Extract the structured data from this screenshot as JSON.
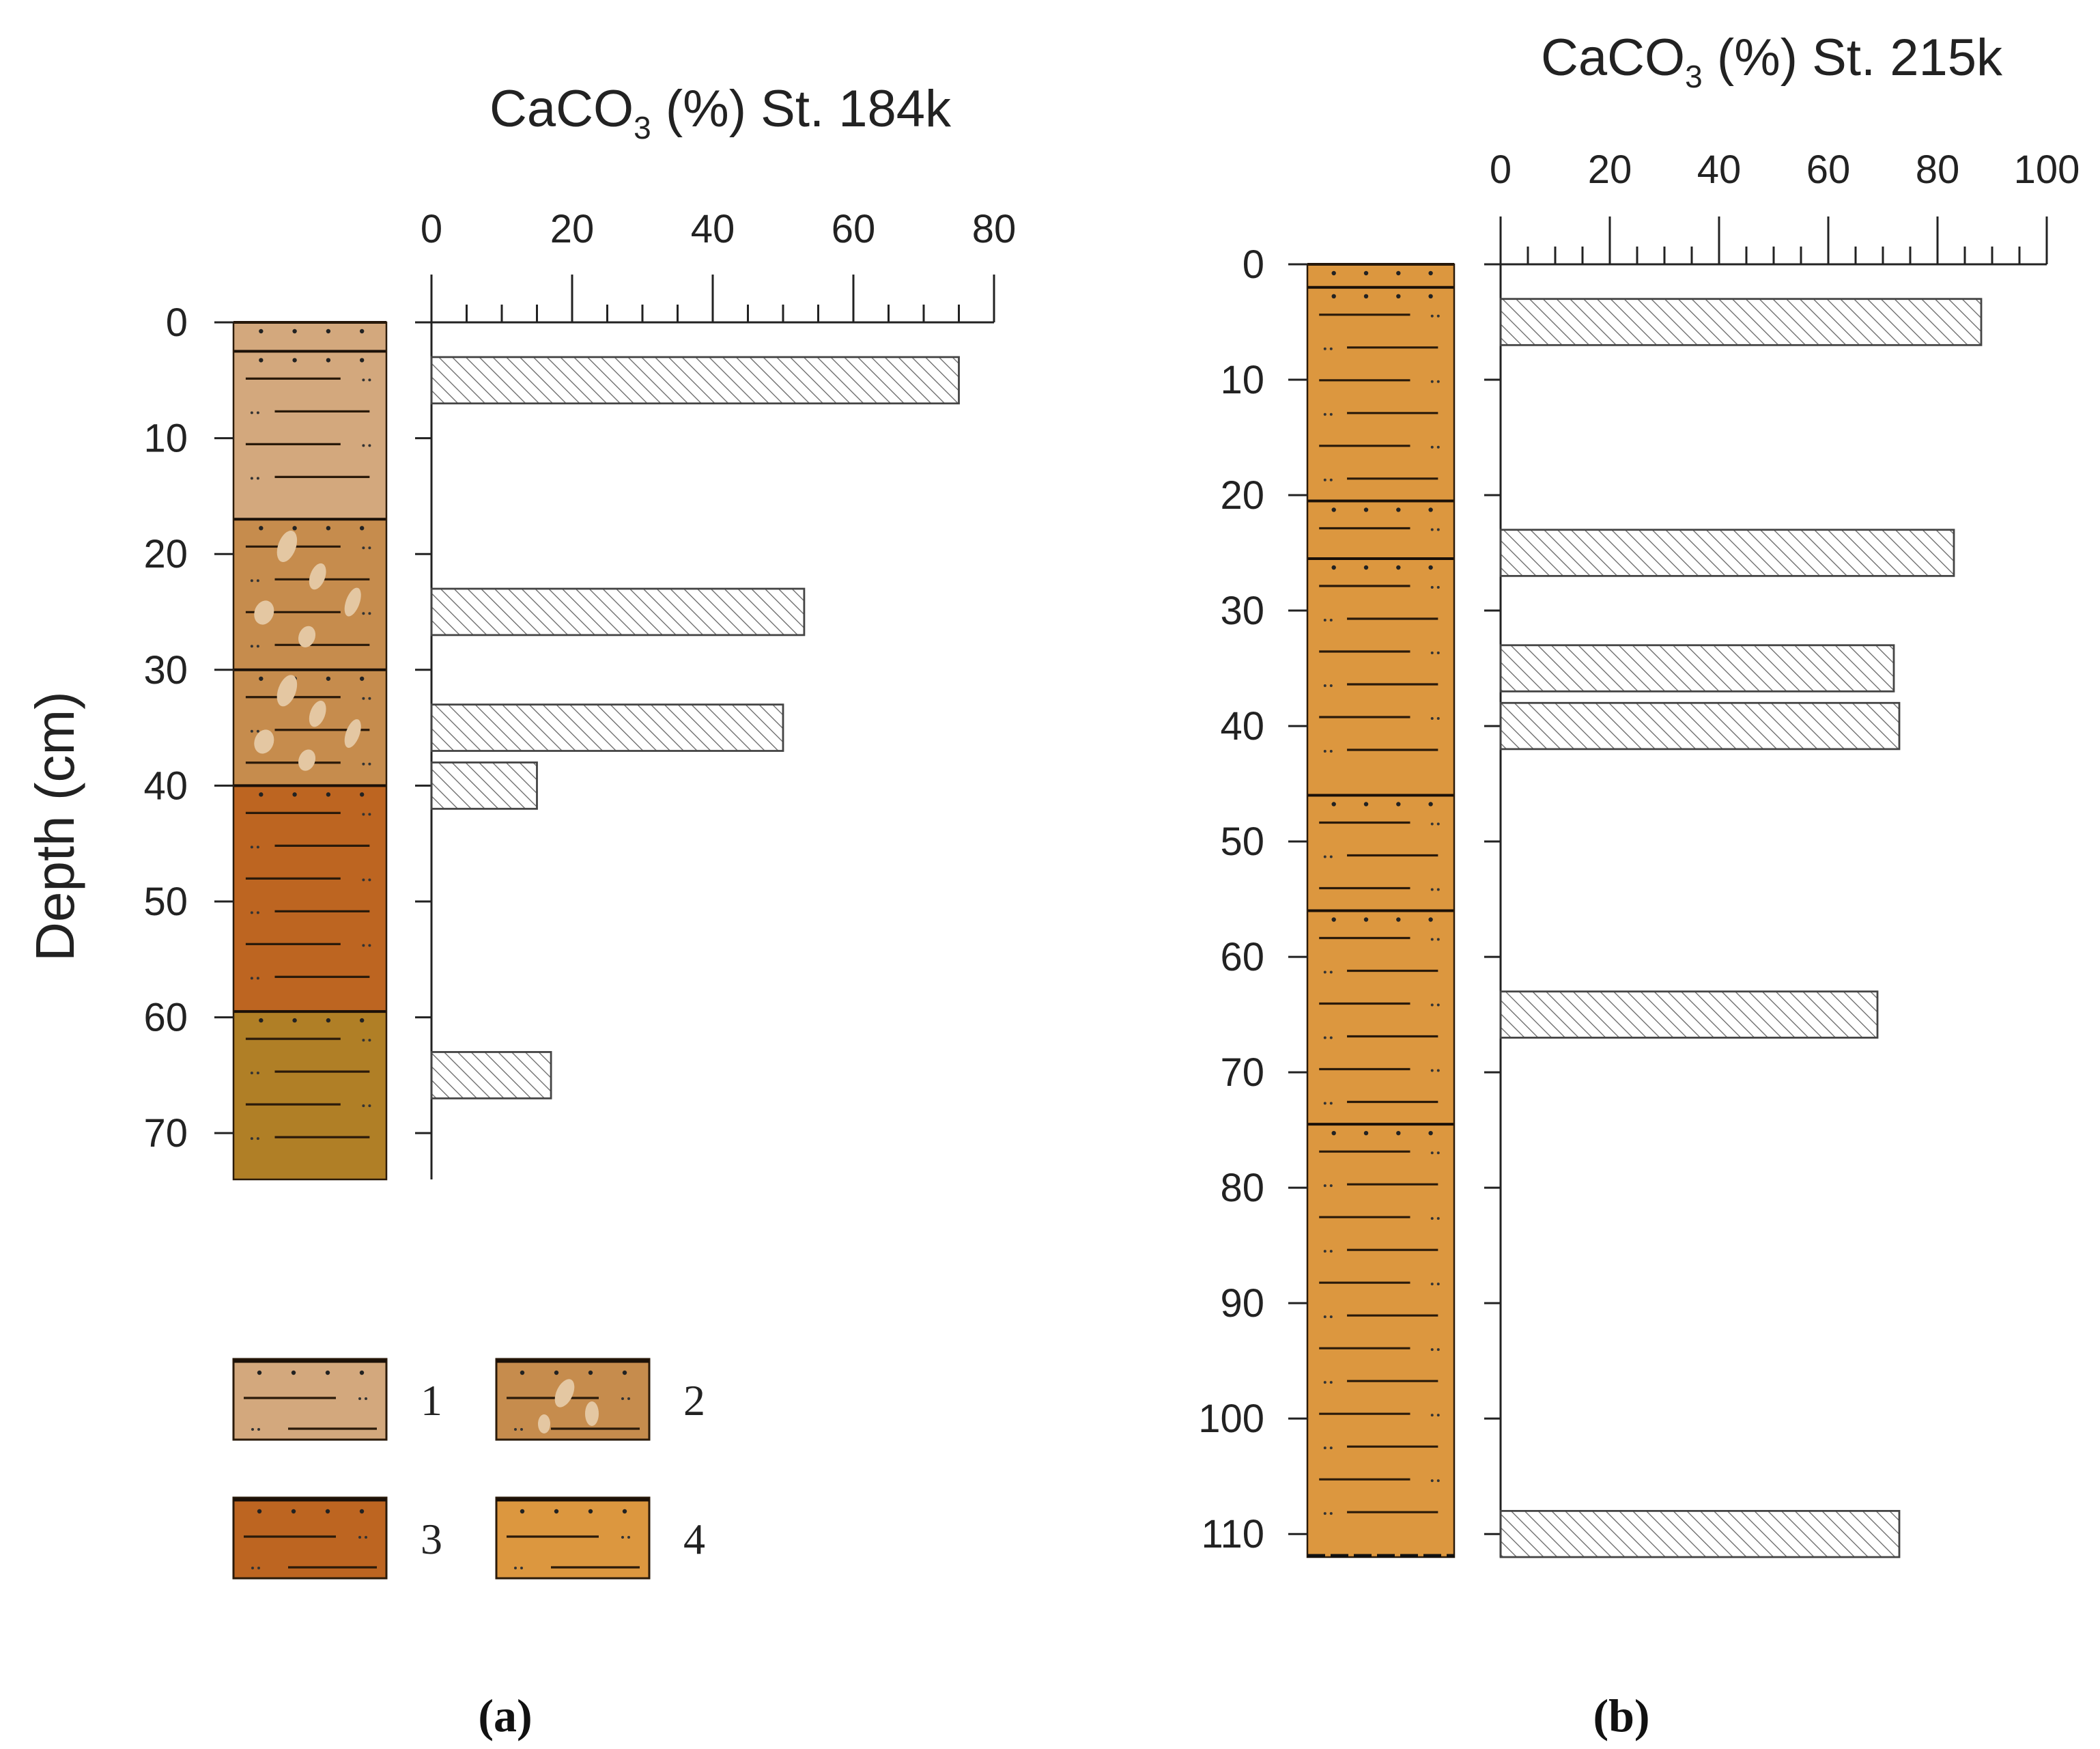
{
  "depth_axis_label": "Depth (cm)",
  "chart_data": [
    {
      "type": "bar",
      "orientation": "horizontal",
      "panel_label": "(a)",
      "title_prefix": "CaCO",
      "title_subscript": "3",
      "title_suffix": " (%) St. 184k",
      "xlabel": "CaCO3 (%)",
      "ylabel": "Depth (cm)",
      "xlim": [
        0,
        80
      ],
      "x_ticks": [
        0,
        20,
        40,
        60,
        80
      ],
      "x_minor_step": 5,
      "ylim": [
        0,
        74
      ],
      "y_ticks": [
        0,
        10,
        20,
        30,
        40,
        50,
        60,
        70
      ],
      "bars": [
        {
          "depth_top": 3,
          "depth_bottom": 7,
          "value": 75
        },
        {
          "depth_top": 23,
          "depth_bottom": 27,
          "value": 53
        },
        {
          "depth_top": 33,
          "depth_bottom": 37,
          "value": 50
        },
        {
          "depth_top": 38,
          "depth_bottom": 42,
          "value": 15
        },
        {
          "depth_top": 63,
          "depth_bottom": 67,
          "value": 17
        }
      ],
      "soil_column": [
        {
          "top": 0,
          "bottom": 2.5,
          "type": 1
        },
        {
          "top": 2.5,
          "bottom": 17,
          "type": 1
        },
        {
          "top": 17,
          "bottom": 30,
          "type": 2
        },
        {
          "top": 30,
          "bottom": 40,
          "type": 2
        },
        {
          "top": 40,
          "bottom": 59.5,
          "type": 3
        },
        {
          "top": 59.5,
          "bottom": 74,
          "type": 5
        }
      ]
    },
    {
      "type": "bar",
      "orientation": "horizontal",
      "panel_label": "(b)",
      "title_prefix": "CaCO",
      "title_subscript": "3",
      "title_suffix": " (%) St. 215k",
      "xlabel": "CaCO3 (%)",
      "ylabel": "Depth (cm)",
      "xlim": [
        0,
        100
      ],
      "x_ticks": [
        0,
        20,
        40,
        60,
        80,
        100
      ],
      "x_minor_step": 5,
      "ylim": [
        0,
        112
      ],
      "y_ticks": [
        0,
        10,
        20,
        30,
        40,
        50,
        60,
        70,
        80,
        90,
        100,
        110
      ],
      "bars": [
        {
          "depth_top": 3,
          "depth_bottom": 7,
          "value": 88
        },
        {
          "depth_top": 23,
          "depth_bottom": 27,
          "value": 83
        },
        {
          "depth_top": 33,
          "depth_bottom": 37,
          "value": 72
        },
        {
          "depth_top": 38,
          "depth_bottom": 42,
          "value": 73
        },
        {
          "depth_top": 63,
          "depth_bottom": 67,
          "value": 69
        },
        {
          "depth_top": 108,
          "depth_bottom": 112,
          "value": 73
        }
      ],
      "soil_column": [
        {
          "top": 0,
          "bottom": 2,
          "type": 4
        },
        {
          "top": 2,
          "bottom": 20.5,
          "type": 4
        },
        {
          "top": 20.5,
          "bottom": 25.5,
          "type": 4
        },
        {
          "top": 25.5,
          "bottom": 46,
          "type": 4
        },
        {
          "top": 46,
          "bottom": 56,
          "type": 4
        },
        {
          "top": 56,
          "bottom": 74.5,
          "type": 4
        },
        {
          "top": 74.5,
          "bottom": 112,
          "type": 4
        }
      ]
    }
  ],
  "legend": [
    {
      "label": "1",
      "color": "#d3a87d",
      "type": 1
    },
    {
      "label": "2",
      "color": "#c68c4d",
      "type": 2
    },
    {
      "label": "3",
      "color": "#bd6521",
      "type": 3
    },
    {
      "label": "4",
      "color": "#dc973f",
      "type": 4
    }
  ],
  "colors": {
    "type1": "#d3a87d",
    "type2": "#c68c4d",
    "type3": "#bd6521",
    "type4": "#dc973f",
    "type5": "#b07f26",
    "axis": "#222222",
    "hatch": "#555555",
    "clast": "#e4c7a2"
  }
}
